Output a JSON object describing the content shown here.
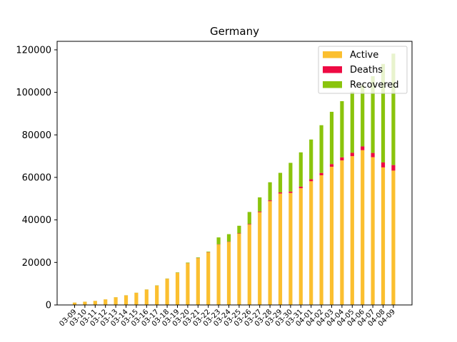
{
  "chart_data": {
    "type": "bar",
    "stacked": true,
    "title": "Germany",
    "xlabel": "",
    "ylabel": "",
    "ylim": [
      0,
      124000
    ],
    "yticks": [
      0,
      20000,
      40000,
      60000,
      80000,
      100000,
      120000
    ],
    "grid": false,
    "legend_position": "top-right",
    "categories": [
      "03-09",
      "03-10",
      "03-11",
      "03-12",
      "03-13",
      "03-14",
      "03-15",
      "03-16",
      "03-17",
      "03-18",
      "03-19",
      "03-20",
      "03-21",
      "03-22",
      "03-23",
      "03-24",
      "03-25",
      "03-26",
      "03-27",
      "03-28",
      "03-29",
      "03-30",
      "03-31",
      "04-01",
      "04-02",
      "04-03",
      "04-04",
      "04-05",
      "04-06",
      "04-07",
      "04-08",
      "04-09"
    ],
    "series": [
      {
        "name": "Active",
        "color": "#fbbf2f",
        "values": [
          1100,
          1500,
          1900,
          2600,
          3600,
          4500,
          5700,
          7200,
          9100,
          12300,
          15100,
          19600,
          22000,
          24700,
          28400,
          29600,
          33500,
          37800,
          43600,
          48800,
          52400,
          52700,
          54900,
          58200,
          61000,
          65000,
          68000,
          70000,
          72800,
          69500,
          64700,
          63200
        ]
      },
      {
        "name": "Deaths",
        "color": "#ee0a43",
        "values": [
          2,
          2,
          3,
          3,
          7,
          9,
          11,
          17,
          24,
          28,
          44,
          67,
          84,
          94,
          123,
          157,
          206,
          267,
          342,
          433,
          533,
          645,
          775,
          920,
          1107,
          1275,
          1444,
          1584,
          1810,
          2016,
          2349,
          2607
        ]
      },
      {
        "name": "Recovered",
        "color": "#8ac40c",
        "values": [
          25,
          25,
          25,
          25,
          46,
          46,
          46,
          67,
          105,
          113,
          180,
          266,
          266,
          266,
          3243,
          3547,
          3547,
          5673,
          6658,
          8481,
          9211,
          13500,
          16100,
          18700,
          22440,
          24575,
          26400,
          28700,
          28700,
          36081,
          46300,
          52407
        ]
      }
    ]
  }
}
